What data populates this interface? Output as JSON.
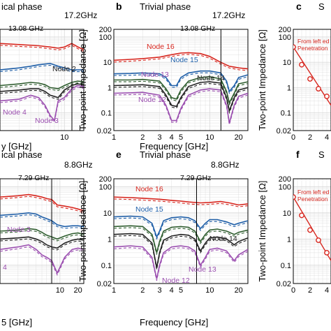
{
  "colors": {
    "red": "#d7261e",
    "blue": "#1f5fa8",
    "green": "#2f5d2f",
    "black": "#222222",
    "purple": "#9b4fb0",
    "grid": "#d8d8d8",
    "marker": "#d7261e"
  },
  "chart_data": [
    {
      "id": "a",
      "type": "line",
      "panel_label": "",
      "title": "ical phase",
      "marker_text": "17.2GHz",
      "annotation": "13.08 GHz",
      "xlabel": "y [GHz]",
      "ylabel": "",
      "xlim": [
        1,
        20
      ],
      "ylim": [
        0.02,
        200
      ],
      "xscale": "log",
      "yscale": "log",
      "x_ticks": [
        10
      ],
      "x_tick_labels": [
        "10"
      ],
      "vline_x": 13.08,
      "series": [
        {
          "color": "red",
          "x": [
            1,
            2,
            4,
            6,
            8,
            10,
            13,
            15,
            18,
            20
          ],
          "values": [
            55,
            50,
            45,
            40,
            36,
            40,
            55,
            45,
            35,
            32
          ]
        },
        {
          "color": "blue",
          "x": [
            1,
            2,
            3,
            4,
            6,
            8,
            10,
            13,
            16,
            20
          ],
          "values": [
            5,
            6,
            7,
            8,
            9,
            7,
            6,
            5,
            5,
            5
          ]
        },
        {
          "color": "green",
          "x": [
            1,
            2,
            3,
            4,
            5,
            6,
            8,
            10,
            13,
            16,
            20
          ],
          "values": [
            1.2,
            1.4,
            1.6,
            1.5,
            1.3,
            1.0,
            0.9,
            1.2,
            1.6,
            1.8,
            1.7
          ]
        },
        {
          "color": "black",
          "x": [
            1,
            2,
            3,
            4,
            5,
            6,
            8,
            10,
            13,
            16,
            20
          ],
          "values": [
            0.7,
            0.8,
            0.9,
            0.9,
            0.7,
            0.5,
            0.4,
            0.8,
            1.2,
            1.4,
            1.3
          ]
        },
        {
          "color": "purple",
          "x": [
            1,
            2,
            3,
            4,
            5,
            6,
            7,
            8,
            10,
            13,
            16,
            20
          ],
          "values": [
            0.3,
            0.35,
            0.5,
            0.4,
            0.2,
            0.08,
            0.05,
            0.3,
            0.4,
            0.9,
            1.2,
            1.1
          ]
        }
      ],
      "node_labels": [
        "Node 2",
        "Node 4",
        "Node 3"
      ]
    },
    {
      "id": "b",
      "type": "line",
      "panel_label": "b",
      "title": "Trivial phase",
      "marker_text": "17.2GHz",
      "annotation": "13.08 GHz",
      "xlabel": "Frequency [GHz]",
      "ylabel": "Two-point Impedance [Ω]",
      "xlim": [
        1,
        25
      ],
      "ylim": [
        0.02,
        200
      ],
      "xscale": "log",
      "yscale": "log",
      "x_ticks": [
        1,
        2,
        3,
        4,
        5,
        10,
        20
      ],
      "x_tick_labels": [
        "1",
        "2",
        "3",
        "4",
        "5",
        "10",
        "20"
      ],
      "y_ticks": [
        0.02,
        0.1,
        1,
        10,
        100,
        200
      ],
      "y_tick_labels": [
        "0.02",
        "0.1",
        "1",
        "10",
        "100",
        "200"
      ],
      "vline_x": 13.08,
      "series": [
        {
          "color": "red",
          "x": [
            1,
            1.5,
            2,
            3,
            4,
            5,
            6,
            8,
            10,
            13,
            16,
            20,
            25
          ],
          "values": [
            12,
            13,
            14,
            16,
            20,
            23,
            24,
            22,
            17,
            10,
            7,
            6,
            5.5
          ]
        },
        {
          "color": "blue",
          "x": [
            1,
            1.5,
            2,
            3,
            3.5,
            4,
            4.5,
            5,
            6,
            8,
            10,
            13,
            15,
            16,
            18,
            20,
            25
          ],
          "values": [
            3.5,
            3.6,
            3.8,
            3.5,
            2.5,
            1.2,
            1.2,
            2.5,
            3.8,
            4.5,
            4.5,
            3.8,
            1.8,
            0.7,
            1.2,
            2.5,
            3.2
          ]
        },
        {
          "color": "green",
          "x": [
            1,
            1.5,
            2,
            3,
            3.5,
            4,
            4.5,
            5,
            6,
            8,
            10,
            13,
            15,
            16,
            18,
            20,
            25
          ],
          "values": [
            2.0,
            2.0,
            2.1,
            1.8,
            0.9,
            0.4,
            0.35,
            0.8,
            1.8,
            2.5,
            2.7,
            2.2,
            0.7,
            0.25,
            0.6,
            1.4,
            1.7
          ]
        },
        {
          "color": "black",
          "x": [
            1,
            1.5,
            2,
            3,
            3.5,
            4,
            4.5,
            5,
            6,
            8,
            10,
            13,
            15,
            16,
            18,
            20,
            25
          ],
          "values": [
            1.2,
            1.25,
            1.3,
            1.1,
            0.5,
            0.2,
            0.18,
            0.4,
            1.1,
            1.6,
            1.7,
            1.5,
            0.4,
            0.12,
            0.4,
            0.8,
            1.0
          ]
        },
        {
          "color": "purple",
          "x": [
            1,
            1.5,
            2,
            3,
            3.5,
            4,
            4.5,
            5,
            6,
            8,
            10,
            13,
            15,
            16,
            18,
            20,
            25
          ],
          "values": [
            0.6,
            0.62,
            0.65,
            0.5,
            0.2,
            0.05,
            0.05,
            0.15,
            0.5,
            0.8,
            0.9,
            0.8,
            0.2,
            0.04,
            0.2,
            0.45,
            0.6
          ]
        }
      ],
      "node_labels": [
        "Node 16",
        "Node 15",
        "Node 14",
        "Node 13",
        "Node 12"
      ]
    },
    {
      "id": "c",
      "type": "scatter",
      "panel_label": "c",
      "title": "S",
      "xlabel": "",
      "ylabel": "Two-point Impedance [Ω]",
      "xlim": [
        0,
        4.5
      ],
      "ylim": [
        0.02,
        200
      ],
      "yscale": "log",
      "x_ticks": [
        0,
        2,
        4
      ],
      "x_tick_labels": [
        "0",
        "2",
        "4"
      ],
      "y_ticks": [
        0.02,
        0.1,
        1,
        10,
        100,
        200
      ],
      "y_tick_labels": [
        "0.02",
        "0.1",
        "1",
        "10",
        "100",
        "200"
      ],
      "legend": [
        "From left ed",
        "Penetration"
      ],
      "x": [
        0,
        1,
        2,
        3,
        4
      ],
      "values": [
        40,
        8,
        2.2,
        0.9,
        0.45
      ],
      "fit": {
        "x": [
          0,
          4.5
        ],
        "values": [
          40,
          0.2
        ]
      }
    },
    {
      "id": "d",
      "type": "line",
      "panel_label": "",
      "title": "ical phase",
      "marker_text": "8.8GHz",
      "annotation": "7.29 GHz",
      "xlabel": "5  [GHz]",
      "ylabel": "",
      "xlim": [
        1,
        25
      ],
      "ylim": [
        0.02,
        200
      ],
      "xscale": "log",
      "yscale": "log",
      "x_ticks": [
        10,
        20
      ],
      "x_tick_labels": [
        "10",
        "20"
      ],
      "vline_x": 7.29,
      "series": [
        {
          "color": "red",
          "x": [
            1,
            2,
            3,
            4,
            5,
            6,
            7.29,
            9,
            12,
            16,
            20,
            25
          ],
          "values": [
            40,
            45,
            50,
            45,
            40,
            35,
            32,
            20,
            18,
            16,
            14,
            12
          ]
        },
        {
          "color": "blue",
          "x": [
            1,
            2,
            3,
            4,
            5,
            6,
            7.29,
            9,
            12,
            16,
            20,
            25
          ],
          "values": [
            8,
            9,
            10,
            9,
            7,
            6,
            5,
            3.5,
            3,
            3.2,
            3.2,
            3.0
          ]
        },
        {
          "color": "green",
          "x": [
            1,
            2,
            3,
            4,
            5,
            6,
            7.29,
            9,
            12,
            16,
            20,
            25
          ],
          "values": [
            2,
            2.2,
            2.5,
            2.3,
            1.8,
            1.4,
            1.2,
            1.0,
            1.3,
            1.6,
            1.7,
            1.5
          ]
        },
        {
          "color": "black",
          "x": [
            1,
            2,
            3,
            4,
            5,
            6,
            7.29,
            9,
            12,
            16,
            20,
            25
          ],
          "values": [
            1,
            1.1,
            1.2,
            1.0,
            0.8,
            0.6,
            0.5,
            0.45,
            0.7,
            0.9,
            1.0,
            0.9
          ]
        },
        {
          "color": "purple",
          "x": [
            1,
            2,
            3,
            4,
            5,
            6,
            7.29,
            9,
            12,
            16,
            20,
            25
          ],
          "values": [
            0.4,
            0.5,
            0.6,
            0.4,
            0.25,
            0.2,
            0.15,
            0.05,
            0.2,
            0.4,
            0.45,
            0.4
          ]
        }
      ],
      "node_labels": [
        "Node 3",
        "4"
      ]
    },
    {
      "id": "e",
      "type": "line",
      "panel_label": "e",
      "title": "Trivial phase",
      "marker_text": "8.8GHz",
      "annotation": "7.29 GHz",
      "xlabel": "Frequency [GHz]",
      "ylabel": "Two-point Impedance [Ω]",
      "xlim": [
        1,
        25
      ],
      "ylim": [
        0.02,
        200
      ],
      "xscale": "log",
      "yscale": "log",
      "x_ticks": [
        1,
        2,
        3,
        4,
        5,
        10,
        20
      ],
      "x_tick_labels": [
        "1",
        "2",
        "3",
        "4",
        "5",
        "10",
        "20"
      ],
      "y_ticks": [
        0.02,
        0.1,
        1,
        10,
        100,
        200
      ],
      "y_tick_labels": [
        "0.02",
        "0.1",
        "1",
        "10",
        "100",
        "200"
      ],
      "vline_x": 7.29,
      "series": [
        {
          "color": "red",
          "x": [
            1,
            1.5,
            2,
            3,
            4,
            5,
            6,
            8,
            10,
            13,
            16,
            20,
            25
          ],
          "values": [
            40,
            38,
            36,
            33,
            30,
            28,
            26,
            24,
            25,
            27,
            24,
            20,
            22
          ]
        },
        {
          "color": "blue",
          "x": [
            1,
            1.5,
            2,
            2.5,
            2.8,
            3,
            3.3,
            4,
            5,
            6,
            7,
            8,
            9,
            10,
            12,
            15,
            18,
            20,
            25
          ],
          "values": [
            7,
            7.5,
            7,
            4,
            1.2,
            2,
            5,
            6.5,
            7,
            6.5,
            5,
            2.5,
            4,
            5.5,
            5.5,
            4.5,
            3.5,
            4,
            5
          ]
        },
        {
          "color": "green",
          "x": [
            1,
            1.5,
            2,
            2.5,
            2.8,
            3,
            3.3,
            4,
            5,
            6,
            7,
            8,
            9,
            10,
            12,
            15,
            18,
            20,
            25
          ],
          "values": [
            3,
            3.2,
            3,
            1.5,
            0.3,
            0.8,
            2,
            2.8,
            3,
            2.8,
            2,
            0.8,
            1.5,
            2.2,
            2.4,
            2,
            1.5,
            1.8,
            2.2
          ]
        },
        {
          "color": "black",
          "x": [
            1,
            1.5,
            2,
            2.5,
            2.8,
            3,
            3.3,
            4,
            5,
            6,
            7,
            8,
            9,
            10,
            12,
            15,
            18,
            20,
            25
          ],
          "values": [
            1.5,
            1.6,
            1.5,
            0.7,
            0.08,
            0.3,
            0.9,
            1.3,
            1.5,
            1.4,
            1,
            0.35,
            0.7,
            1.1,
            1.2,
            1,
            0.6,
            0.8,
            1.1
          ]
        },
        {
          "color": "purple",
          "x": [
            1,
            1.5,
            2,
            2.5,
            2.8,
            3,
            3.3,
            4,
            5,
            6,
            7,
            8,
            9,
            10,
            12,
            15,
            18,
            20,
            25
          ],
          "values": [
            0.5,
            0.55,
            0.5,
            0.2,
            0.03,
            0.1,
            0.3,
            0.5,
            0.55,
            0.5,
            0.35,
            0.1,
            0.2,
            0.4,
            0.45,
            0.35,
            0.15,
            0.25,
            0.4
          ]
        }
      ],
      "node_labels": [
        "Node 16",
        "Node 15",
        "Node 14",
        "Node 13",
        "Node 12"
      ]
    },
    {
      "id": "f",
      "type": "scatter",
      "panel_label": "f",
      "title": "S",
      "xlabel": "",
      "ylabel": "Two-point Impedance [Ω]",
      "xlim": [
        0,
        4.5
      ],
      "ylim": [
        0.02,
        200
      ],
      "yscale": "log",
      "x_ticks": [
        0,
        2,
        4
      ],
      "x_tick_labels": [
        "0",
        "2",
        "4"
      ],
      "y_ticks": [
        0.02,
        0.1,
        1,
        10,
        100,
        200
      ],
      "y_tick_labels": [
        "0.02",
        "0.1",
        "1",
        "10",
        "100",
        "200"
      ],
      "legend": [
        "From left ed",
        "Penetration"
      ],
      "x": [
        0,
        1,
        2,
        3,
        4
      ],
      "values": [
        40,
        8,
        2.2,
        0.9,
        0.3
      ],
      "fit": {
        "x": [
          0,
          4.5
        ],
        "values": [
          40,
          0.15
        ]
      }
    }
  ]
}
